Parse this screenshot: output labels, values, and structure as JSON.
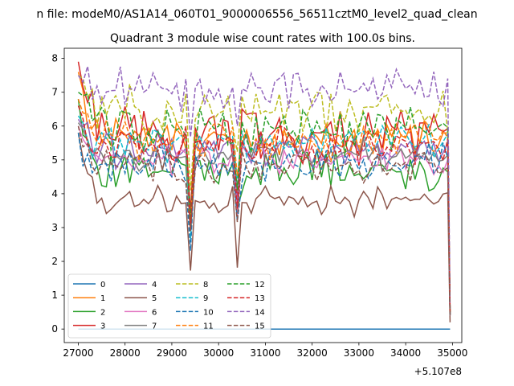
{
  "figure": {
    "suptitle": "n file: modeM0/AS1A14_060T01_9000006556_56511cztM0_level2_quad_clean"
  },
  "chart_data": {
    "type": "line",
    "title": "Quadrant 3 module wise count rates with 100.0s bins.",
    "xlabel": "",
    "ylabel": "",
    "x_offset_label": "+5.107e8",
    "xlim": [
      26700,
      35200
    ],
    "ylim": [
      -0.4,
      8.3
    ],
    "xticks": [
      27000,
      28000,
      29000,
      30000,
      31000,
      32000,
      33000,
      34000,
      35000
    ],
    "xtick_labels": [
      "27000",
      "28000",
      "29000",
      "30000",
      "31000",
      "32000",
      "33000",
      "34000",
      "35000"
    ],
    "yticks": [
      0,
      1,
      2,
      3,
      4,
      5,
      6,
      7,
      8
    ],
    "ytick_labels": [
      "0",
      "1",
      "2",
      "3",
      "4",
      "5",
      "6",
      "7",
      "8"
    ],
    "grid": false,
    "legend_position": "lower-left",
    "legend_columns": 4,
    "x": [
      27000,
      27100,
      27200,
      27300,
      27400,
      27500,
      27600,
      27700,
      27800,
      27900,
      28000,
      28100,
      28200,
      28300,
      28400,
      28500,
      28600,
      28700,
      28800,
      28900,
      29000,
      29100,
      29200,
      29300,
      29400,
      29500,
      29600,
      29700,
      29800,
      29900,
      30000,
      30100,
      30200,
      30300,
      30400,
      30500,
      30600,
      30700,
      30800,
      30900,
      31000,
      31100,
      31200,
      31300,
      31400,
      31500,
      31600,
      31700,
      31800,
      31900,
      32000,
      32100,
      32200,
      32300,
      32400,
      32500,
      32600,
      32700,
      32800,
      32900,
      33000,
      33100,
      33200,
      33300,
      33400,
      33500,
      33600,
      33700,
      33800,
      33900,
      34000,
      34100,
      34200,
      34300,
      34400,
      34500,
      34600,
      34700,
      34800,
      34900,
      34950
    ],
    "series": [
      {
        "name": "0",
        "color": "#1f77b4",
        "dash": "solid",
        "base": 0,
        "amp": 0,
        "seed": 0,
        "end": 0
      },
      {
        "name": "1",
        "color": "#ff7f0e",
        "dash": "solid",
        "base": 5.7,
        "amp": 0.35,
        "seed": 1,
        "start": 7.6,
        "end": 0.4
      },
      {
        "name": "2",
        "color": "#2ca02c",
        "dash": "solid",
        "base": 4.7,
        "amp": 0.35,
        "seed": 2,
        "start": 6.8,
        "end": 0.5
      },
      {
        "name": "3",
        "color": "#d62728",
        "dash": "solid",
        "base": 5.8,
        "amp": 0.5,
        "seed": 3,
        "start": 7.9,
        "end": 0.6
      },
      {
        "name": "4",
        "color": "#9467bd",
        "dash": "solid",
        "base": 5.3,
        "amp": 0.3,
        "seed": 4,
        "start": 6.2,
        "end": 0.4
      },
      {
        "name": "5",
        "color": "#8c564b",
        "dash": "solid",
        "base": 3.8,
        "amp": 0.25,
        "seed": 5,
        "start": 5.8,
        "end": 0.2
      },
      {
        "name": "6",
        "color": "#e377c2",
        "dash": "solid",
        "base": 5.0,
        "amp": 0.3,
        "seed": 6,
        "start": 6.0,
        "end": 0.4
      },
      {
        "name": "7",
        "color": "#7f7f7f",
        "dash": "solid",
        "base": 5.2,
        "amp": 0.3,
        "seed": 7,
        "start": 6.1,
        "end": 0.4
      },
      {
        "name": "8",
        "color": "#bcbd22",
        "dash": "dashed",
        "base": 6.4,
        "amp": 0.45,
        "seed": 8,
        "start": 7.5,
        "end": 0.5
      },
      {
        "name": "9",
        "color": "#17becf",
        "dash": "dashed",
        "base": 5.5,
        "amp": 0.35,
        "seed": 9,
        "start": 6.3,
        "end": 0.4
      },
      {
        "name": "10",
        "color": "#1f77b4",
        "dash": "dashed",
        "base": 4.9,
        "amp": 0.35,
        "seed": 10,
        "start": 5.8,
        "end": 0.4
      },
      {
        "name": "11",
        "color": "#ff7f0e",
        "dash": "dashed",
        "base": 5.6,
        "amp": 0.35,
        "seed": 11,
        "start": 6.8,
        "end": 0.5
      },
      {
        "name": "12",
        "color": "#2ca02c",
        "dash": "dashed",
        "base": 5.9,
        "amp": 0.4,
        "seed": 12,
        "start": 7.0,
        "end": 0.5
      },
      {
        "name": "13",
        "color": "#d62728",
        "dash": "dashed",
        "base": 5.4,
        "amp": 0.35,
        "seed": 13,
        "start": 6.6,
        "end": 0.5
      },
      {
        "name": "14",
        "color": "#9467bd",
        "dash": "dashed",
        "base": 7.1,
        "amp": 0.35,
        "seed": 14,
        "start": 7.5,
        "end": 0.6
      },
      {
        "name": "15",
        "color": "#8c564b",
        "dash": "dashed",
        "base": 4.8,
        "amp": 0.3,
        "seed": 15,
        "start": 6.0,
        "end": 0.4
      }
    ],
    "dips": [
      {
        "x": 29400,
        "depth": 2.5
      },
      {
        "x": 30400,
        "depth": 1.8
      }
    ]
  }
}
